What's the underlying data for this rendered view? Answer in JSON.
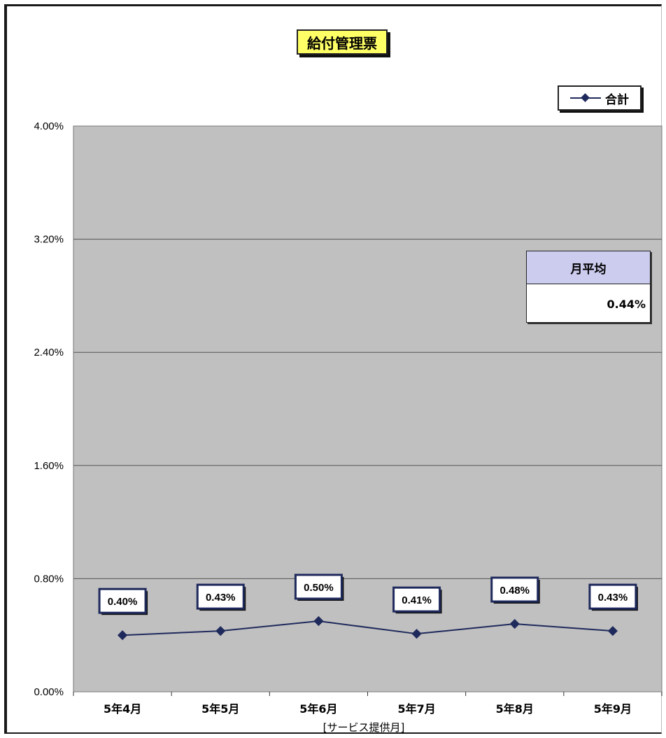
{
  "chart_data": {
    "type": "line",
    "title": "給付管理票",
    "xlabel": "[サービス提供月]",
    "ylabel": "",
    "categories": [
      "5年4月",
      "5年5月",
      "5年6月",
      "5年7月",
      "5年8月",
      "5年9月"
    ],
    "series": [
      {
        "name": "合計",
        "values": [
          0.4,
          0.43,
          0.5,
          0.41,
          0.48,
          0.43
        ],
        "labels": [
          "0.40%",
          "0.43%",
          "0.50%",
          "0.41%",
          "0.48%",
          "0.43%"
        ],
        "color": "#1f2a5c"
      }
    ],
    "ylim": [
      0,
      4
    ],
    "yticks": [
      "0.00%",
      "0.80%",
      "1.60%",
      "2.40%",
      "3.20%",
      "4.00%"
    ],
    "ytick_values": [
      0,
      0.8,
      1.6,
      2.4,
      3.2,
      4.0
    ],
    "grid": true,
    "legend_position": "top-right",
    "plot_background": "#c0c0c0"
  },
  "avg_box": {
    "header": "月平均",
    "value": "0.44%"
  }
}
